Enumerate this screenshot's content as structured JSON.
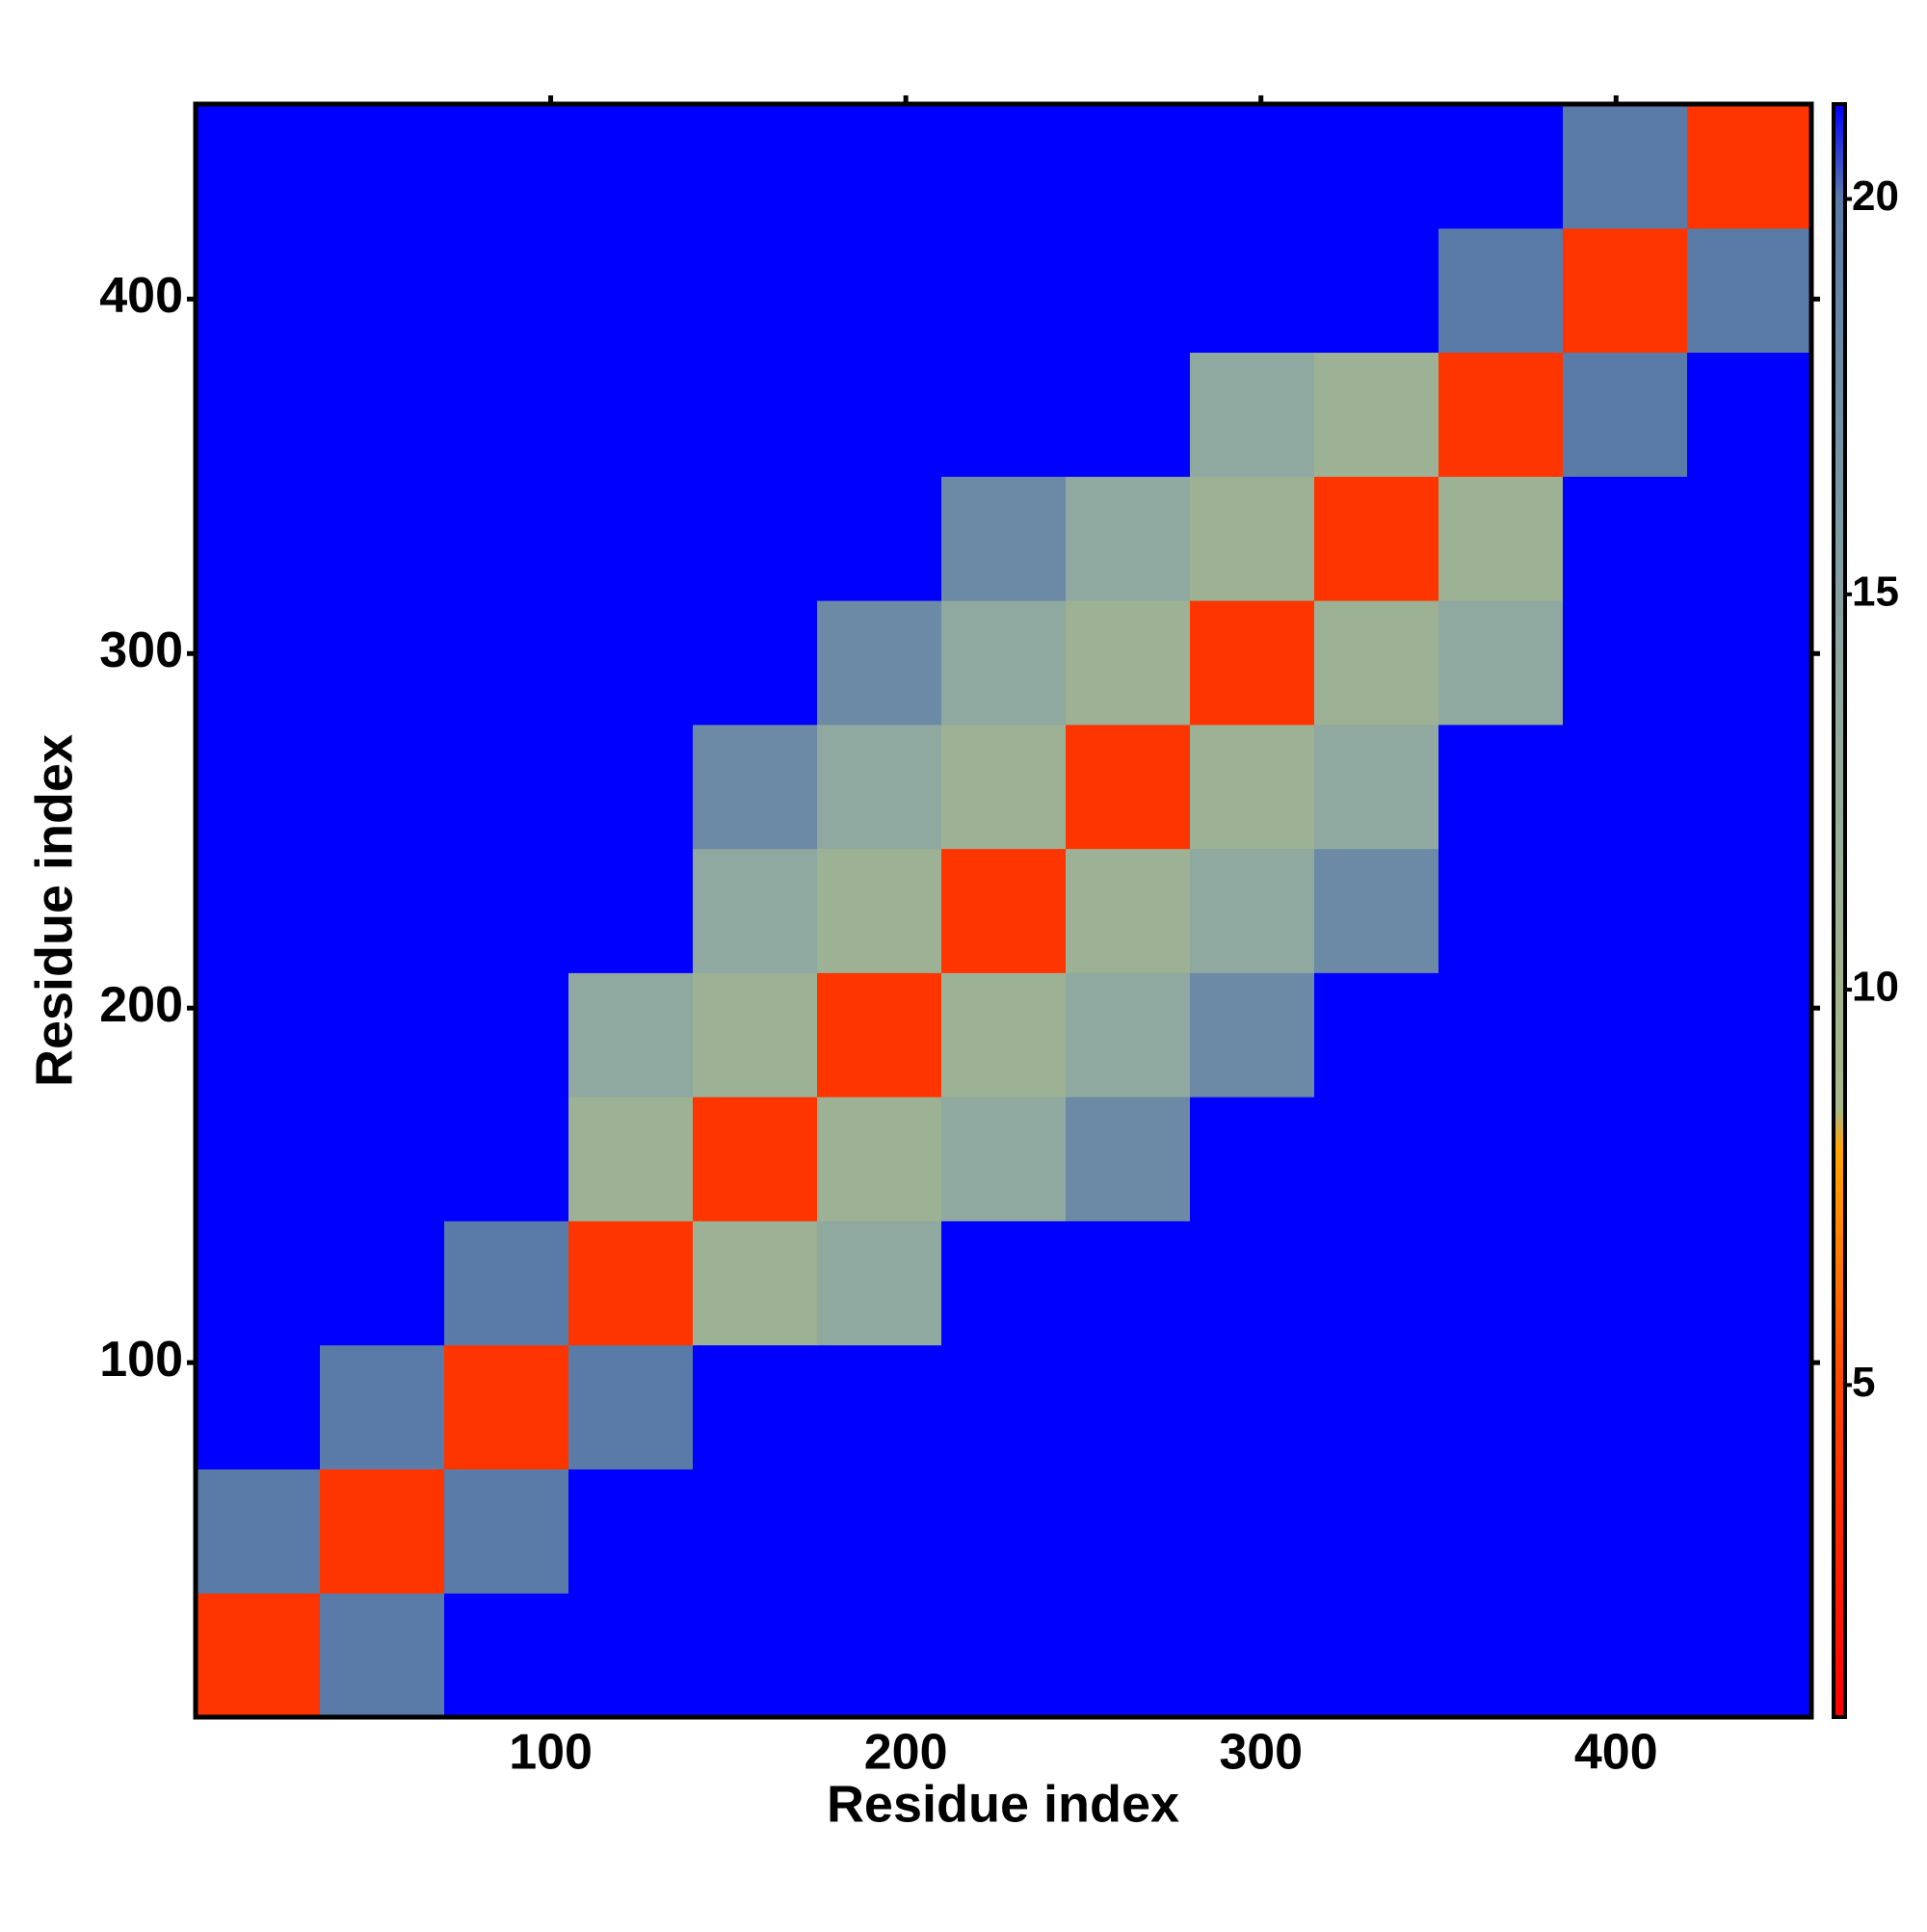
{
  "chart_data": {
    "type": "heatmap",
    "xlabel": "Residue index",
    "ylabel": "Residue index",
    "xlim": [
      0,
      455
    ],
    "ylim": [
      0,
      455
    ],
    "xticks": [
      100,
      200,
      300,
      400
    ],
    "yticks": [
      100,
      200,
      300,
      400
    ],
    "xbins": [
      0,
      35,
      70,
      105,
      140,
      175,
      210,
      245,
      280,
      315,
      350,
      385,
      420,
      455
    ],
    "ybins": [
      0,
      35,
      70,
      105,
      140,
      175,
      210,
      245,
      280,
      315,
      350,
      385,
      420,
      455
    ],
    "z": [
      [
        4,
        20,
        21.2,
        21.2,
        21.2,
        21.2,
        21.2,
        21.2,
        21.2,
        21.2,
        21.2,
        21.2,
        21.2
      ],
      [
        20,
        4,
        20,
        21.2,
        21.2,
        21.2,
        21.2,
        21.2,
        21.2,
        21.2,
        21.2,
        21.2,
        21.2
      ],
      [
        21.2,
        20,
        4,
        20,
        21.2,
        21.2,
        21.2,
        21.2,
        21.2,
        21.2,
        21.2,
        21.2,
        21.2
      ],
      [
        21.2,
        21.2,
        20,
        4,
        11,
        14,
        21.2,
        21.2,
        21.2,
        21.2,
        21.2,
        21.2,
        21.2
      ],
      [
        21.2,
        21.2,
        21.2,
        11,
        4,
        11,
        14,
        18,
        21.2,
        21.2,
        21.2,
        21.2,
        21.2
      ],
      [
        21.2,
        21.2,
        21.2,
        14,
        11,
        4,
        11,
        14,
        18,
        21.2,
        21.2,
        21.2,
        21.2
      ],
      [
        21.2,
        21.2,
        21.2,
        21.2,
        14,
        11,
        4,
        11,
        14,
        18,
        21.2,
        21.2,
        21.2
      ],
      [
        21.2,
        21.2,
        21.2,
        21.2,
        18,
        14,
        11,
        4,
        11,
        14,
        21.2,
        21.2,
        21.2
      ],
      [
        21.2,
        21.2,
        21.2,
        21.2,
        21.2,
        18,
        14,
        11,
        4,
        11,
        14,
        21.2,
        21.2
      ],
      [
        21.2,
        21.2,
        21.2,
        21.2,
        21.2,
        21.2,
        18,
        14,
        11,
        4,
        11,
        21.2,
        21.2
      ],
      [
        21.2,
        21.2,
        21.2,
        21.2,
        21.2,
        21.2,
        21.2,
        21.2,
        14,
        11,
        4,
        20,
        21.2
      ],
      [
        21.2,
        21.2,
        21.2,
        21.2,
        21.2,
        21.2,
        21.2,
        21.2,
        21.2,
        21.2,
        20,
        4,
        20
      ],
      [
        21.2,
        21.2,
        21.2,
        21.2,
        21.2,
        21.2,
        21.2,
        21.2,
        21.2,
        21.2,
        21.2,
        20,
        4
      ]
    ],
    "zlim": [
      0.8,
      21.2
    ],
    "zticks": [
      5,
      10,
      15,
      20
    ],
    "colorscale": [
      [
        0.8,
        "#ff0000"
      ],
      [
        5,
        "#ff4500"
      ],
      [
        8,
        "#ffa500"
      ],
      [
        8.5,
        "#a8b88a"
      ],
      [
        14,
        "#8fa8a0"
      ],
      [
        20,
        "#5a7aa8"
      ],
      [
        21.2,
        "#0000ff"
      ]
    ]
  }
}
